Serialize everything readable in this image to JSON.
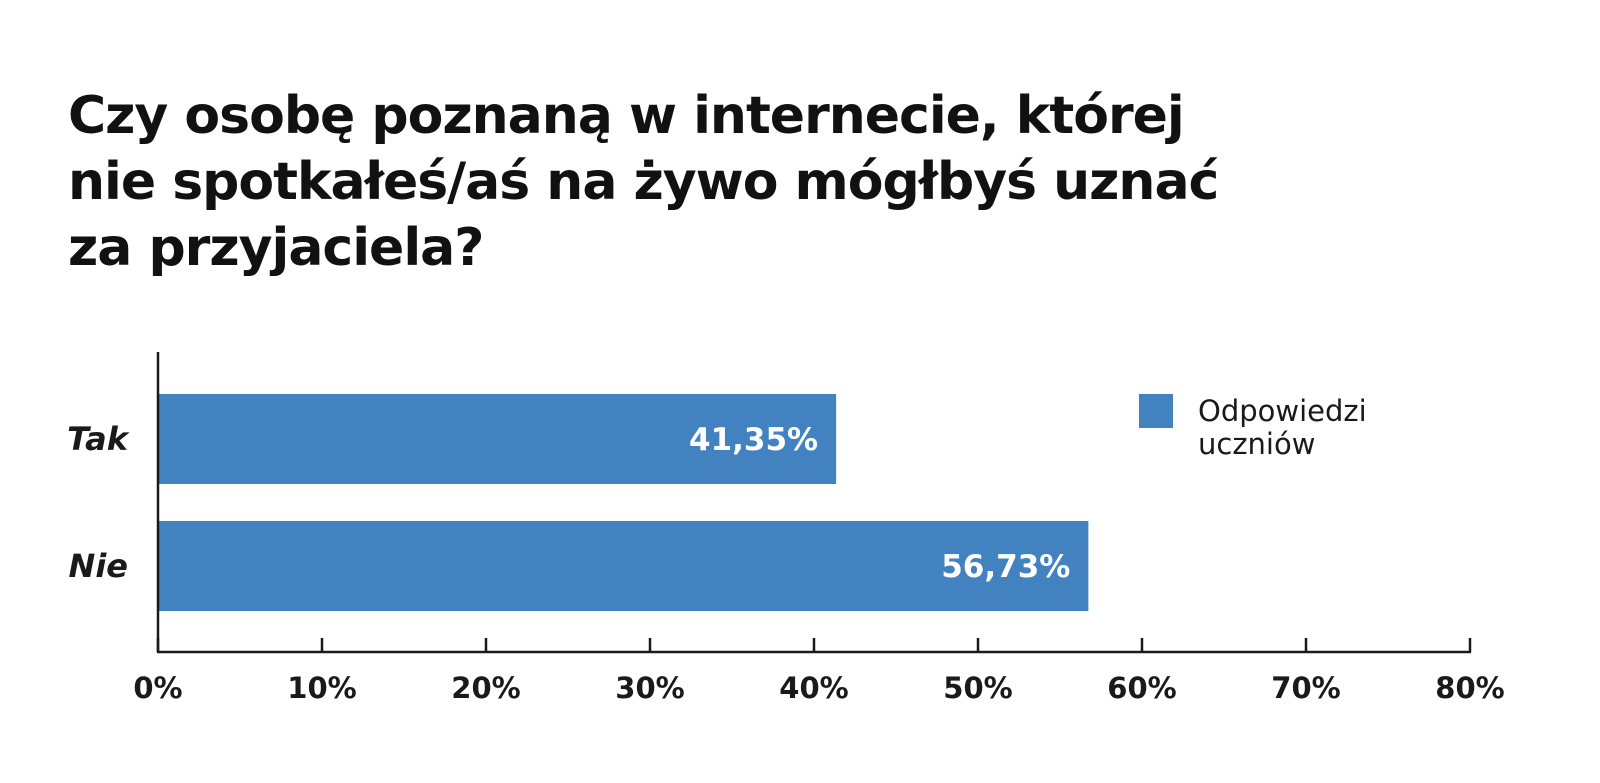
{
  "chart_data": {
    "type": "bar",
    "orientation": "horizontal",
    "title_lines": [
      "Czy osobę poznaną w internecie, której",
      "nie spotkałeś/aś na żywo mógłbyś uznać",
      "za przyjaciela?"
    ],
    "categories": [
      "Tak",
      "Nie"
    ],
    "series": [
      {
        "name_lines": [
          "Odpowiedzi",
          "uczniów"
        ],
        "values": [
          41.35,
          56.73
        ],
        "value_labels": [
          "41,35%",
          "56,73%"
        ],
        "color": "#4282c1"
      }
    ],
    "xlim": [
      0,
      80
    ],
    "xticks": [
      0,
      10,
      20,
      30,
      40,
      50,
      60,
      70,
      80
    ],
    "xtick_labels": [
      "0%",
      "10%",
      "20%",
      "30%",
      "40%",
      "50%",
      "60%",
      "70%",
      "80%"
    ],
    "grid": false,
    "legend": "top-right"
  }
}
